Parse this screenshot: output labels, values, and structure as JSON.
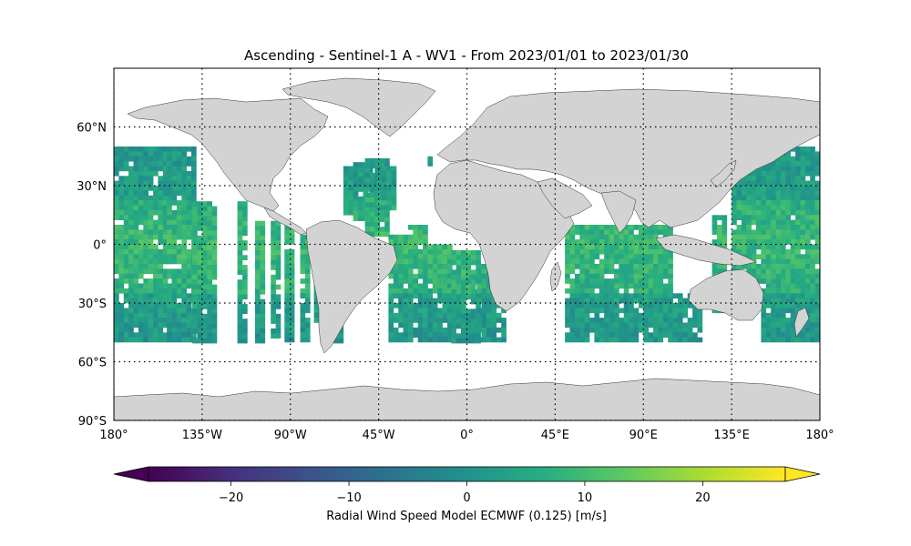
{
  "title": "Ascending - Sentinel-1 A - WV1 - From 2023/01/01 to 2023/01/30",
  "map": {
    "projection": "PlateCarree",
    "lon_range": [
      -180,
      180
    ],
    "lat_range": [
      -90,
      90
    ],
    "gridlines": "dotted",
    "land_color": "#d3d3d3",
    "ocean_color": "#ffffff",
    "lon_ticks": [
      {
        "value": -180,
        "label": "180°"
      },
      {
        "value": -135,
        "label": "135°W"
      },
      {
        "value": -90,
        "label": "90°W"
      },
      {
        "value": -45,
        "label": "45°W"
      },
      {
        "value": 0,
        "label": "0°"
      },
      {
        "value": 45,
        "label": "45°E"
      },
      {
        "value": 90,
        "label": "90°E"
      },
      {
        "value": 135,
        "label": "135°E"
      },
      {
        "value": 180,
        "label": "180°"
      }
    ],
    "lat_ticks": [
      {
        "value": 60,
        "label": "60°N"
      },
      {
        "value": 30,
        "label": "30°N"
      },
      {
        "value": 0,
        "label": "0°"
      },
      {
        "value": -30,
        "label": "30°S"
      },
      {
        "value": -60,
        "label": "60°S"
      },
      {
        "value": -90,
        "label": "90°S"
      }
    ],
    "data_lat_extent": [
      -50,
      50
    ],
    "swaths": [
      {
        "lon": [
          -180,
          -153
        ],
        "lat": [
          -50,
          50
        ]
      },
      {
        "lon": [
          -153,
          -140
        ],
        "lat": [
          -50,
          50
        ]
      },
      {
        "lon": [
          -140,
          -128
        ],
        "lat": [
          -50,
          22
        ]
      },
      {
        "lon": [
          -117,
          -112
        ],
        "lat": [
          -50,
          22
        ]
      },
      {
        "lon": [
          -108,
          -103
        ],
        "lat": [
          -50,
          12
        ]
      },
      {
        "lon": [
          -100,
          -96
        ],
        "lat": [
          -47,
          12
        ]
      },
      {
        "lon": [
          -93,
          -89
        ],
        "lat": [
          -48,
          10
        ]
      },
      {
        "lon": [
          -85,
          -81
        ],
        "lat": [
          -50,
          5
        ]
      },
      {
        "lon": [
          -78,
          -75
        ],
        "lat": [
          -40,
          -5
        ]
      },
      {
        "lon": [
          -68,
          -64
        ],
        "lat": [
          -50,
          -38
        ]
      },
      {
        "lon": [
          -63,
          -57
        ],
        "lat": [
          15,
          40
        ]
      },
      {
        "lon": [
          -58,
          -48
        ],
        "lat": [
          12,
          42
        ]
      },
      {
        "lon": [
          -52,
          -40
        ],
        "lat": [
          5,
          44
        ]
      },
      {
        "lon": [
          -46,
          -38
        ],
        "lat": [
          18,
          40
        ]
      },
      {
        "lon": [
          -40,
          -30
        ],
        "lat": [
          -50,
          5
        ]
      },
      {
        "lon": [
          -30,
          -20
        ],
        "lat": [
          -50,
          10
        ]
      },
      {
        "lon": [
          -20,
          -8
        ],
        "lat": [
          -50,
          0
        ]
      },
      {
        "lon": [
          -20,
          -18
        ],
        "lat": [
          40,
          45
        ]
      },
      {
        "lon": [
          -8,
          5
        ],
        "lat": [
          -50,
          -3
        ]
      },
      {
        "lon": [
          5,
          20
        ],
        "lat": [
          -50,
          -10
        ]
      },
      {
        "lon": [
          50,
          105
        ],
        "lat": [
          -50,
          10
        ]
      },
      {
        "lon": [
          105,
          120
        ],
        "lat": [
          -50,
          -25
        ]
      },
      {
        "lon": [
          125,
          132
        ],
        "lat": [
          -35,
          15
        ]
      },
      {
        "lon": [
          135,
          160
        ],
        "lat": [
          -20,
          50
        ]
      },
      {
        "lon": [
          150,
          180
        ],
        "lat": [
          -50,
          50
        ]
      }
    ]
  },
  "colorbar": {
    "cmap": "viridis",
    "vmin": -27,
    "vmax": 27,
    "extend": "both",
    "ticks": [
      {
        "value": -20,
        "label": "−20"
      },
      {
        "value": -10,
        "label": "−10"
      },
      {
        "value": 0,
        "label": "0"
      },
      {
        "value": 10,
        "label": "10"
      },
      {
        "value": 20,
        "label": "20"
      }
    ],
    "label": "Radial Wind Speed Model ECMWF (0.125) [m/s]"
  }
}
